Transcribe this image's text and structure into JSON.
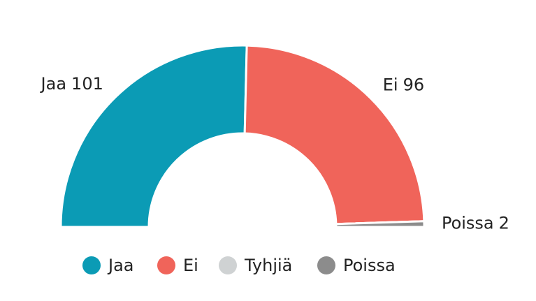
{
  "chart_data": {
    "type": "half-donut",
    "categories": [
      "Jaa",
      "Ei",
      "Tyhjiä",
      "Poissa"
    ],
    "values": [
      101,
      96,
      0,
      2
    ],
    "colors": [
      "#0b9bb5",
      "#f0645a",
      "#cfd2d3",
      "#8c8c8c"
    ]
  }
}
